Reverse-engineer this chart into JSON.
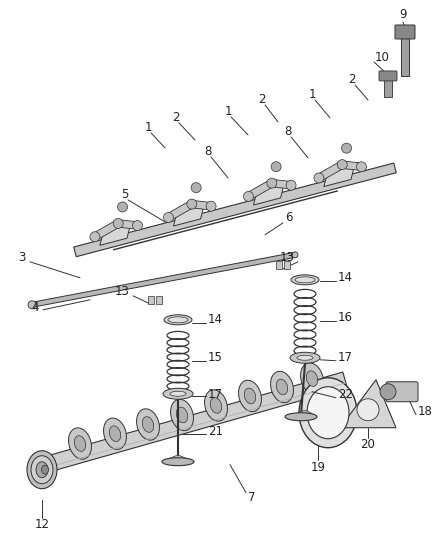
{
  "bg_color": "#ffffff",
  "line_color": "#555555",
  "dark_color": "#333333",
  "light_fill": "#e8e8e8",
  "mid_fill": "#cccccc",
  "dark_fill": "#999999",
  "figsize": [
    4.38,
    5.33
  ],
  "dpi": 100,
  "label_fs": 8.5,
  "label_color": "#222222"
}
